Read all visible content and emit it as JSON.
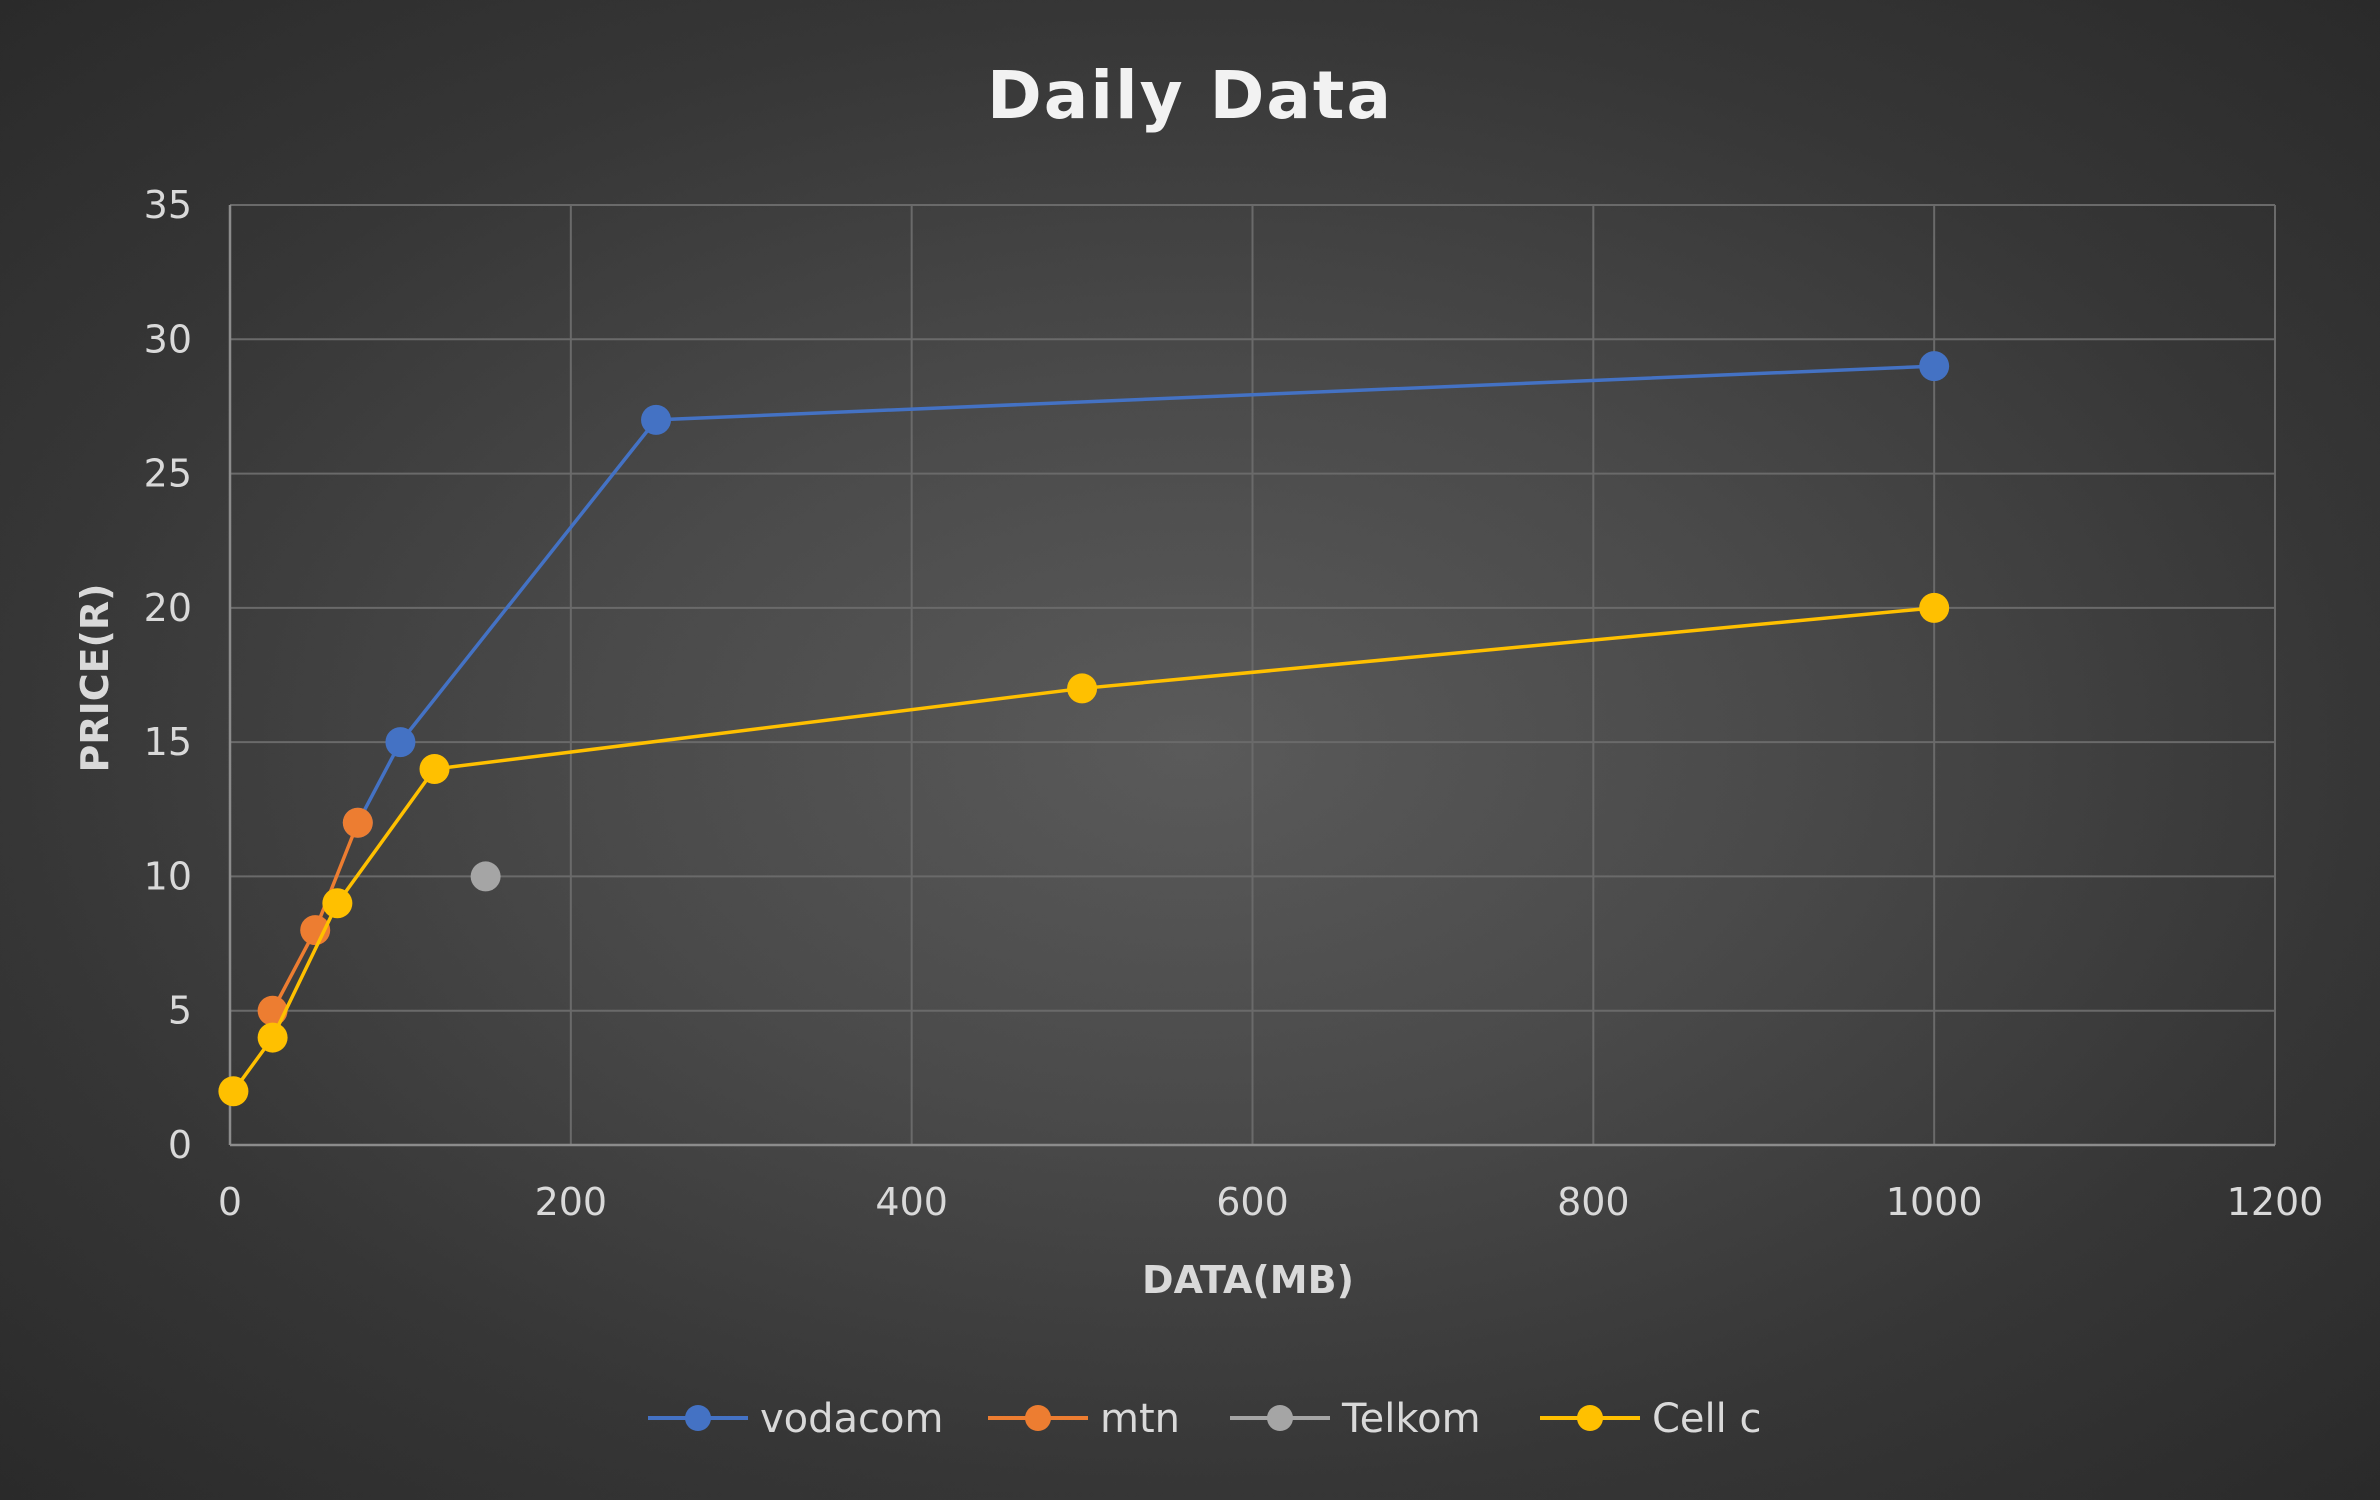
{
  "chart_data": {
    "type": "scatter",
    "title": "Daily Data",
    "xlabel": "DATA(MB)",
    "ylabel": "PRICE(R)",
    "xlim": [
      0,
      1200
    ],
    "ylim": [
      0,
      35
    ],
    "x_ticks": [
      0,
      200,
      400,
      600,
      800,
      1000,
      1200
    ],
    "y_ticks": [
      0,
      5,
      10,
      15,
      20,
      25,
      30,
      35
    ],
    "grid": true,
    "legend_position": "bottom",
    "series": [
      {
        "name": "vodacom",
        "color": "#4472c4",
        "points": [
          [
            75,
            12
          ],
          [
            100,
            15
          ],
          [
            250,
            27
          ],
          [
            1000,
            29
          ]
        ]
      },
      {
        "name": "mtn",
        "color": "#ed7d31",
        "points": [
          [
            25,
            5
          ],
          [
            50,
            8
          ],
          [
            75,
            12
          ]
        ]
      },
      {
        "name": "Telkom",
        "color": "#a5a5a5",
        "points": [
          [
            150,
            10
          ]
        ]
      },
      {
        "name": "Cell c",
        "color": "#ffc000",
        "points": [
          [
            2,
            2
          ],
          [
            25,
            4
          ],
          [
            63,
            9
          ],
          [
            120,
            14
          ],
          [
            500,
            17
          ],
          [
            1000,
            20
          ]
        ]
      }
    ]
  }
}
